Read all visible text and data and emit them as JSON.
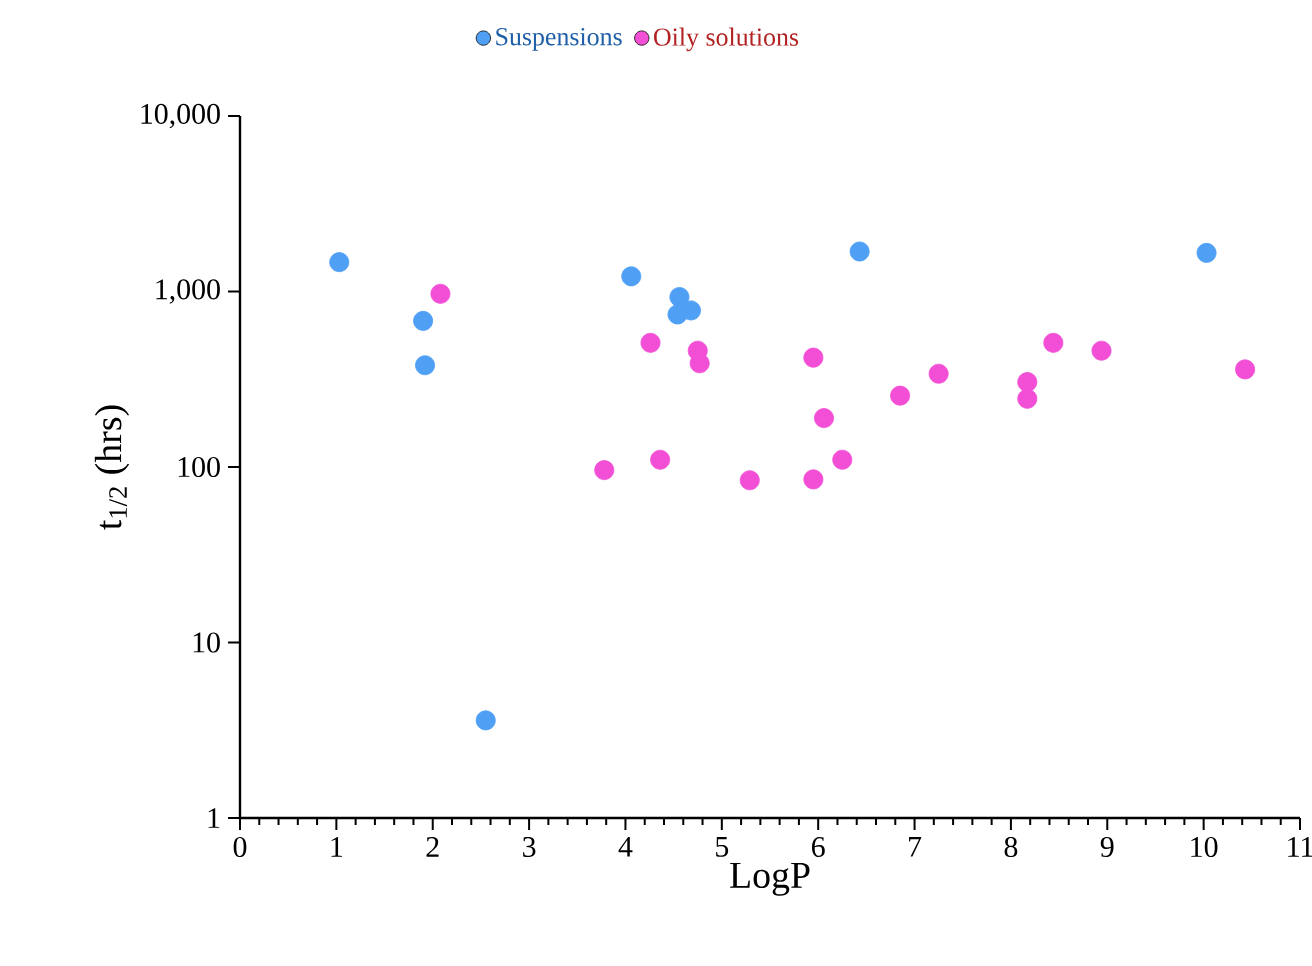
{
  "chart_data": {
    "type": "scatter",
    "xlabel": "LogP",
    "ylabel": "t$_{1/2}$ (hrs)",
    "log": "y",
    "marker": "circle",
    "legend": "top",
    "grid": false,
    "xlim": [
      0,
      11
    ],
    "xticks": [
      0,
      1,
      2,
      3,
      4,
      5,
      6,
      7,
      8,
      9,
      10,
      11
    ],
    "ylim": [
      1,
      10000
    ],
    "yticks": [
      {
        "value": 1,
        "label": "1"
      },
      {
        "value": 10,
        "label": "10"
      },
      {
        "value": 100,
        "label": "100"
      },
      {
        "value": 1000,
        "label": "1,000"
      },
      {
        "value": 10000,
        "label": "10,000"
      }
    ],
    "series": [
      {
        "name": "Suspensions",
        "color": "#4f9ff5",
        "x": [
          1.03,
          1.9,
          1.92,
          2.55,
          4.06,
          4.56,
          4.54,
          4.68,
          6.43,
          10.03
        ],
        "values": [
          1470,
          680,
          380,
          3.6,
          1220,
          930,
          740,
          780,
          1690,
          1660
        ]
      },
      {
        "name": "Oily solutions",
        "color": "#f24fd6",
        "x": [
          2.08,
          3.78,
          4.26,
          4.36,
          4.75,
          4.77,
          5.29,
          5.95,
          5.95,
          6.06,
          6.25,
          6.85,
          7.25,
          8.17,
          8.17,
          8.44,
          8.94,
          10.43
        ],
        "values": [
          970,
          96,
          510,
          110,
          460,
          390,
          84,
          420,
          85,
          190,
          110,
          255,
          340,
          305,
          245,
          510,
          460,
          360
        ]
      }
    ]
  }
}
